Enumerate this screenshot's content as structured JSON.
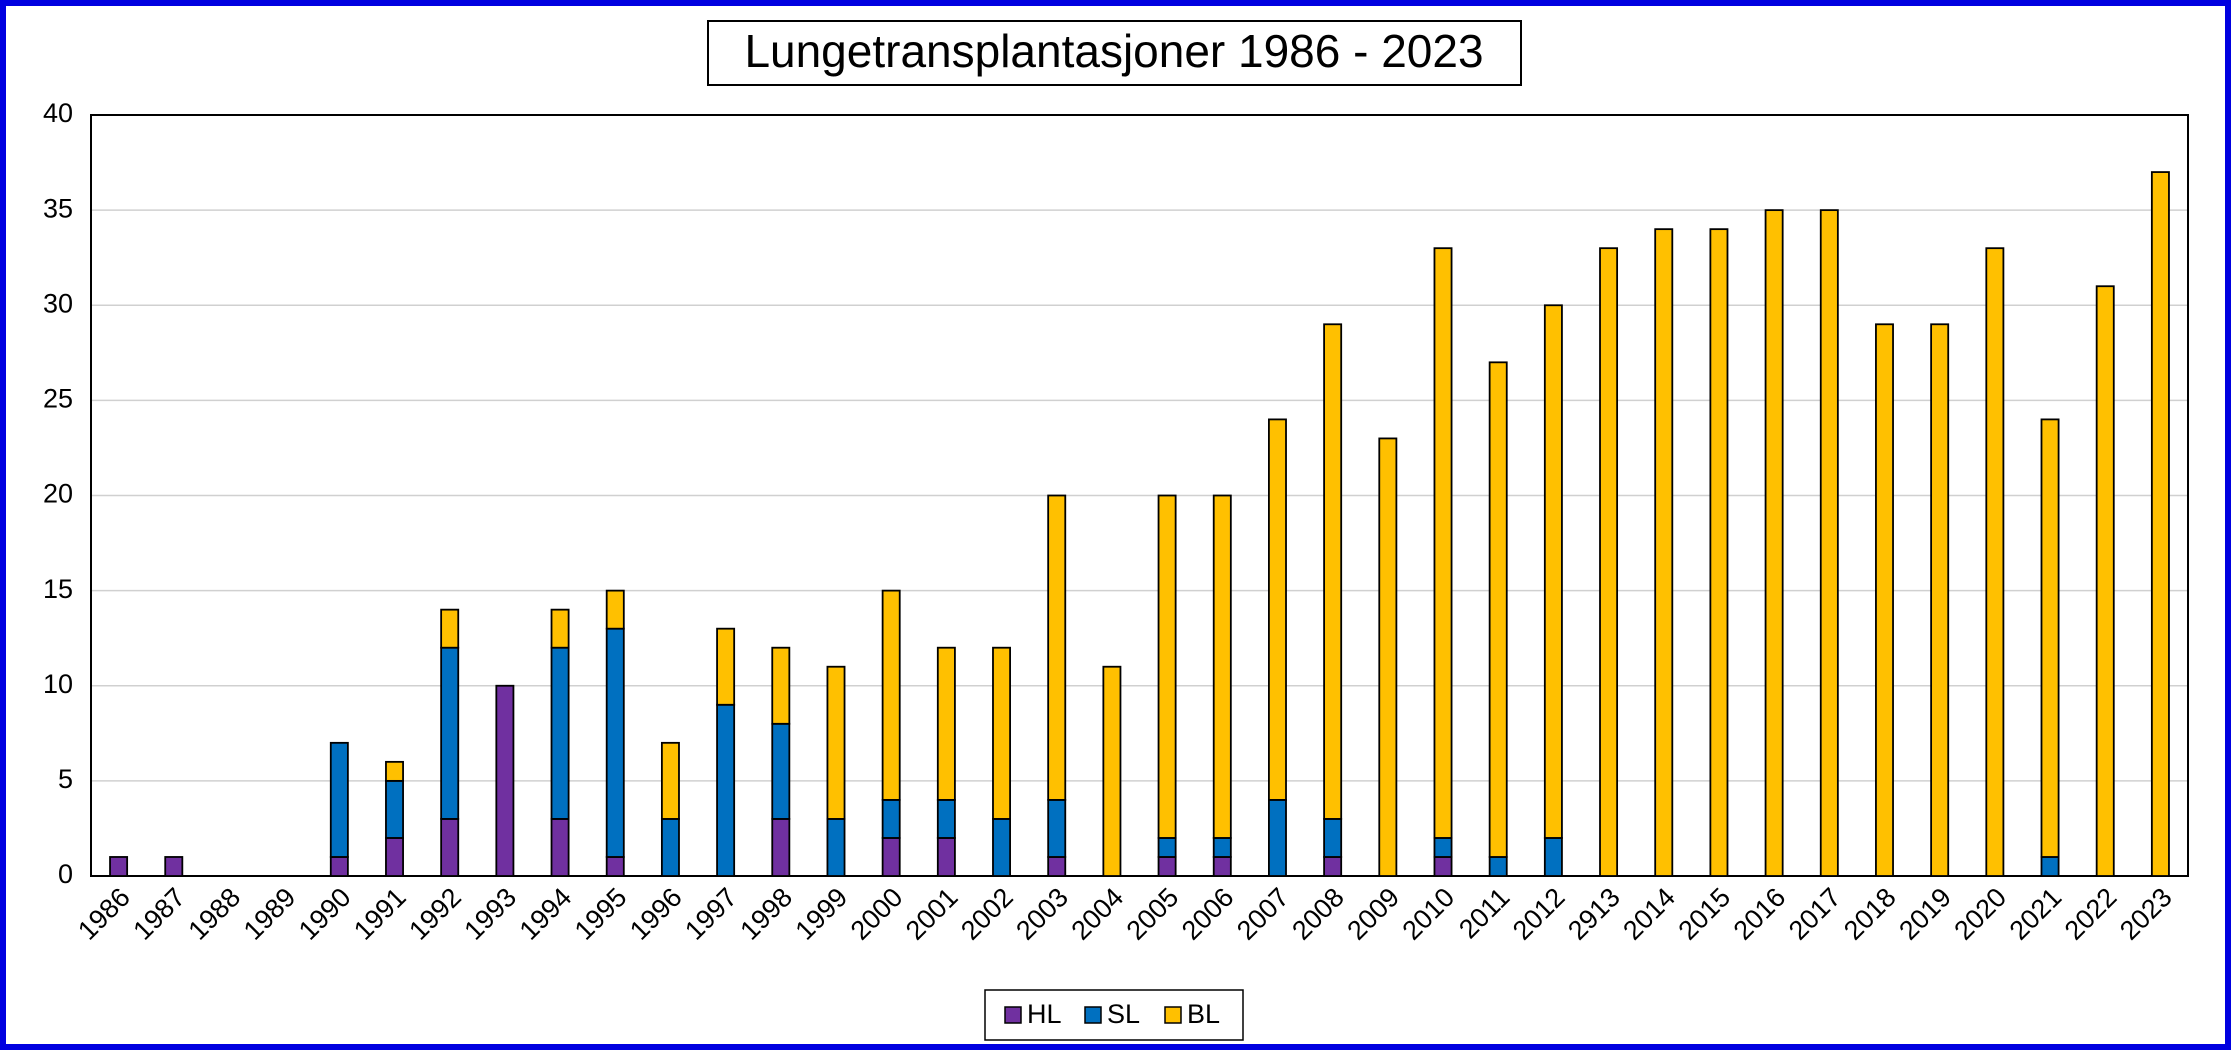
{
  "chart_data": {
    "type": "stacked-bar",
    "title": "Lungetransplantasjoner 1986 - 2023",
    "categories": [
      "1986",
      "1987",
      "1988",
      "1989",
      "1990",
      "1991",
      "1992",
      "1993",
      "1994",
      "1995",
      "1996",
      "1997",
      "1998",
      "1999",
      "2000",
      "2001",
      "2002",
      "2003",
      "2004",
      "2005",
      "2006",
      "2007",
      "2008",
      "2009",
      "2010",
      "2011",
      "2012",
      "2913",
      "2014",
      "2015",
      "2016",
      "2017",
      "2018",
      "2019",
      "2020",
      "2021",
      "2022",
      "2023"
    ],
    "series": [
      {
        "name": "HL",
        "color": "#7030a0",
        "values": [
          1,
          1,
          0,
          0,
          1,
          2,
          3,
          10,
          3,
          1,
          0,
          0,
          3,
          0,
          2,
          2,
          0,
          1,
          0,
          1,
          1,
          0,
          1,
          0,
          1,
          0,
          0,
          0,
          0,
          0,
          0,
          0,
          0,
          0,
          0,
          0,
          0,
          0
        ]
      },
      {
        "name": "SL",
        "color": "#0070c0",
        "values": [
          0,
          0,
          0,
          0,
          6,
          3,
          9,
          0,
          9,
          12,
          3,
          9,
          5,
          3,
          2,
          2,
          3,
          3,
          0,
          1,
          1,
          4,
          2,
          0,
          1,
          1,
          2,
          0,
          0,
          0,
          0,
          0,
          0,
          0,
          0,
          1,
          0,
          0
        ]
      },
      {
        "name": "BL",
        "color": "#ffc000",
        "values": [
          0,
          0,
          0,
          0,
          0,
          1,
          2,
          0,
          2,
          2,
          4,
          4,
          4,
          8,
          11,
          8,
          9,
          16,
          11,
          18,
          18,
          20,
          26,
          23,
          31,
          26,
          28,
          33,
          34,
          34,
          35,
          35,
          29,
          29,
          33,
          23,
          31,
          37
        ]
      }
    ],
    "ylim": [
      0,
      40
    ],
    "yticks": [
      0,
      5,
      10,
      15,
      20,
      25,
      30,
      35,
      40
    ],
    "grid": true,
    "legend": "bottom"
  }
}
